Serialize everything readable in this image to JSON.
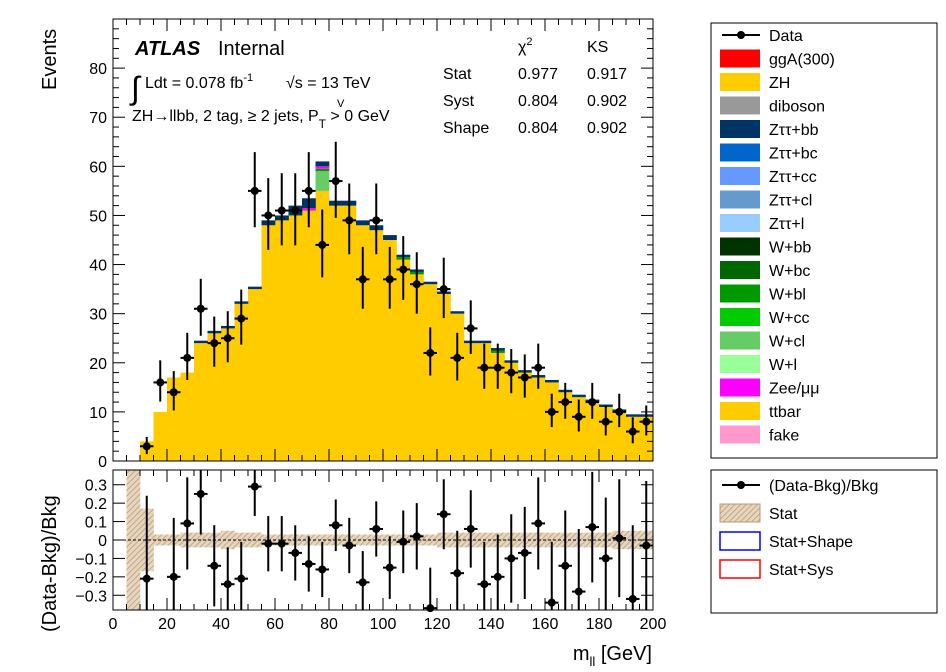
{
  "chart_data": [
    {
      "type": "bar",
      "stacked": true,
      "ylabel": "Events",
      "x_range": [
        0,
        200
      ],
      "ylim": [
        0,
        90
      ],
      "y_ticks": [
        0,
        10,
        20,
        30,
        40,
        50,
        60,
        70,
        80
      ],
      "atlas_label": "ATLAS",
      "atlas_status": "Internal",
      "lumi_text": "Ldt = 0.078 fb",
      "lumi_exp": "-1",
      "energy_text": "√s = 13 TeV",
      "region_text": "ZH→llbb, 2 tag, ≥ 2 jets,  P",
      "region_sup": "V",
      "region_sub": "T",
      "region_tail": " > 0 GeV",
      "stat_header": [
        "χ",
        "2",
        "KS"
      ],
      "stat_table": [
        {
          "name": "Stat",
          "chi2": "0.977",
          "ks": "0.917"
        },
        {
          "name": "Syst",
          "chi2": "0.804",
          "ks": "0.902"
        },
        {
          "name": "Shape",
          "chi2": "0.804",
          "ks": "0.902"
        }
      ],
      "bin_edges": [
        5,
        10,
        15,
        20,
        25,
        30,
        35,
        40,
        45,
        50,
        55,
        60,
        65,
        70,
        75,
        80,
        85,
        90,
        95,
        100,
        105,
        110,
        115,
        120,
        125,
        130,
        135,
        140,
        145,
        150,
        155,
        160,
        165,
        170,
        175,
        180,
        185,
        190,
        195,
        200
      ],
      "stack": [
        {
          "name": "ttbar",
          "color": "#ffcc00",
          "values": [
            0,
            4,
            10,
            17,
            18,
            24,
            26,
            27,
            32,
            35,
            48,
            49,
            50,
            51,
            55,
            52,
            52,
            48,
            47,
            45,
            41,
            38,
            36,
            34,
            30,
            24,
            24,
            22,
            20,
            18,
            17,
            16,
            14,
            13,
            12,
            11,
            10,
            9,
            9
          ]
        },
        {
          "name": "W+cl",
          "color": "#66cc66",
          "values": [
            0,
            0,
            0,
            0,
            0,
            0,
            0,
            0,
            0,
            0,
            0,
            0,
            0,
            0,
            4,
            0,
            0,
            0,
            0,
            0,
            0,
            0,
            0,
            0,
            0,
            0,
            0,
            0,
            0,
            0,
            0,
            0,
            0,
            0,
            0,
            0,
            0,
            0,
            0
          ]
        },
        {
          "name": "W+bl",
          "color": "#009900",
          "values": [
            0,
            0,
            0,
            0,
            0,
            0,
            0,
            0,
            0,
            0,
            0,
            0,
            0,
            0,
            0.5,
            0,
            0,
            0,
            0,
            0,
            0.5,
            0.5,
            0,
            0,
            0,
            0,
            0,
            0.5,
            0,
            0,
            0,
            0,
            0,
            0,
            0,
            0,
            0,
            0,
            0
          ]
        },
        {
          "name": "Zee/μμ",
          "color": "#ff00ff",
          "values": [
            0,
            0,
            0,
            0,
            0,
            0,
            0,
            0,
            0,
            0,
            0,
            0,
            0,
            0.5,
            0.5,
            0,
            0,
            0,
            0,
            0,
            0,
            0,
            0,
            0,
            0,
            0,
            0,
            0,
            0,
            0,
            0,
            0,
            0,
            0,
            0,
            0,
            0,
            0,
            0
          ]
        },
        {
          "name": "Zττ+bb",
          "color": "#003366",
          "values": [
            0,
            0,
            0,
            0,
            0,
            0.5,
            0.5,
            0.5,
            0.5,
            0.5,
            1,
            1,
            2,
            2,
            1,
            1,
            1,
            1,
            1,
            1,
            0.5,
            0.5,
            0.5,
            0.5,
            0.5,
            0.5,
            0.5,
            0.5,
            0.5,
            0.5,
            0.5,
            0.5,
            0.5,
            0.5,
            0.5,
            0.5,
            0.5,
            0.5,
            0.5
          ]
        }
      ],
      "data_points": {
        "x": [
          7.5,
          12.5,
          17.5,
          22.5,
          27.5,
          32.5,
          37.5,
          42.5,
          47.5,
          52.5,
          57.5,
          62.5,
          67.5,
          72.5,
          77.5,
          82.5,
          87.5,
          92.5,
          97.5,
          102.5,
          107.5,
          112.5,
          117.5,
          122.5,
          127.5,
          132.5,
          137.5,
          142.5,
          147.5,
          152.5,
          157.5,
          162.5,
          167.5,
          172.5,
          177.5,
          182.5,
          187.5,
          192.5,
          197.5
        ],
        "y": [
          0,
          3,
          16,
          14,
          21,
          31,
          24,
          25,
          29,
          55,
          50,
          51,
          51,
          55,
          44,
          57,
          49,
          37,
          49,
          37,
          39,
          36,
          22,
          35,
          21,
          27,
          19,
          19,
          18,
          17,
          19,
          10,
          12,
          9,
          12,
          8,
          10,
          6,
          8
        ],
        "err_hi": [
          0,
          1.9,
          4.5,
          4.3,
          5.1,
          6.1,
          5.4,
          5.5,
          5.9,
          7.9,
          7.6,
          7.6,
          7.6,
          7.9,
          7.2,
          8.0,
          7.5,
          6.6,
          7.5,
          6.6,
          6.8,
          6.5,
          5.2,
          6.4,
          5.1,
          5.7,
          4.9,
          4.9,
          4.8,
          4.7,
          4.9,
          3.7,
          3.9,
          3.5,
          3.9,
          3.3,
          3.7,
          2.9,
          3.3
        ],
        "err_lo": [
          0,
          1.6,
          3.9,
          3.7,
          4.5,
          5.5,
          4.8,
          4.9,
          5.3,
          7.4,
          7.0,
          7.1,
          7.1,
          7.4,
          6.6,
          7.5,
          6.9,
          6.0,
          6.9,
          6.0,
          6.2,
          6.0,
          4.6,
          5.9,
          4.6,
          5.2,
          4.3,
          4.3,
          4.2,
          4.1,
          4.3,
          3.1,
          3.4,
          3.0,
          3.4,
          2.8,
          3.1,
          2.4,
          2.8
        ]
      },
      "legend": [
        {
          "label": "Data",
          "kind": "marker",
          "color": "#000000"
        },
        {
          "label": "ggA(300)",
          "kind": "box",
          "color": "#ff0000"
        },
        {
          "label": "ZH",
          "kind": "box",
          "color": "#ffcc00"
        },
        {
          "label": "diboson",
          "kind": "box",
          "color": "#999999"
        },
        {
          "label": "Zττ+bb",
          "kind": "box",
          "color": "#003366"
        },
        {
          "label": "Zττ+bc",
          "kind": "box",
          "color": "#0066cc"
        },
        {
          "label": "Zττ+cc",
          "kind": "box",
          "color": "#6699ff"
        },
        {
          "label": "Zττ+cl",
          "kind": "box",
          "color": "#6699cc"
        },
        {
          "label": "Zττ+l",
          "kind": "box",
          "color": "#99ccff"
        },
        {
          "label": "W+bb",
          "kind": "box",
          "color": "#003300"
        },
        {
          "label": "W+bc",
          "kind": "box",
          "color": "#006600"
        },
        {
          "label": "W+bl",
          "kind": "box",
          "color": "#009900"
        },
        {
          "label": "W+cc",
          "kind": "box",
          "color": "#00cc00"
        },
        {
          "label": "W+cl",
          "kind": "box",
          "color": "#66cc66"
        },
        {
          "label": "W+l",
          "kind": "box",
          "color": "#99ff99"
        },
        {
          "label": "Zee/μμ",
          "kind": "box",
          "color": "#ff00ff"
        },
        {
          "label": "ttbar",
          "kind": "box",
          "color": "#ffcc00"
        },
        {
          "label": "fake",
          "kind": "box",
          "color": "#ff99cc"
        }
      ]
    },
    {
      "type": "scatter",
      "xlabel": "m",
      "xlabel_sub": "ll",
      "xlabel_unit": " [GeV]",
      "ylabel": "(Data-Bkg)/Bkg",
      "x_range": [
        0,
        200
      ],
      "ylim": [
        -0.38,
        0.38
      ],
      "x_ticks": [
        0,
        20,
        40,
        60,
        80,
        100,
        120,
        140,
        160,
        180,
        200
      ],
      "y_ticks": [
        -0.3,
        -0.2,
        -0.1,
        0,
        0.1,
        0.2,
        0.3
      ],
      "y_tick_labels": [
        "−0.3",
        "−0.2",
        "−0.1",
        "0",
        "0.1",
        "0.2",
        "0.3"
      ],
      "stat_band_halfwidth": [
        0.38,
        0.17,
        0.03,
        0.03,
        0.04,
        0.04,
        0.04,
        0.05,
        0.04,
        0.04,
        0.03,
        0.03,
        0.03,
        0.03,
        0.03,
        0.03,
        0.03,
        0.03,
        0.03,
        0.03,
        0.03,
        0.03,
        0.03,
        0.04,
        0.04,
        0.04,
        0.04,
        0.04,
        0.04,
        0.04,
        0.04,
        0.04,
        0.04,
        0.04,
        0.04,
        0.04,
        0.05,
        0.05,
        0.05
      ],
      "ratio_points": {
        "x": [
          12.5,
          22.5,
          27.5,
          32.5,
          37.5,
          42.5,
          47.5,
          52.5,
          57.5,
          62.5,
          67.5,
          72.5,
          77.5,
          82.5,
          87.5,
          92.5,
          97.5,
          102.5,
          107.5,
          112.5,
          117.5,
          122.5,
          127.5,
          132.5,
          137.5,
          142.5,
          147.5,
          152.5,
          157.5,
          162.5,
          167.5,
          172.5,
          177.5,
          182.5,
          187.5,
          192.5,
          197.5
        ],
        "y": [
          -0.21,
          -0.2,
          0.09,
          0.25,
          -0.14,
          -0.24,
          -0.21,
          0.29,
          -0.02,
          -0.02,
          -0.07,
          -0.13,
          -0.16,
          0.08,
          -0.03,
          -0.23,
          0.06,
          -0.15,
          -0.01,
          0.02,
          -0.37,
          0.14,
          -0.18,
          0.06,
          -0.24,
          -0.2,
          -0.1,
          -0.07,
          0.09,
          -0.34,
          -0.14,
          -0.28,
          0.07,
          -0.1,
          0.01,
          -0.32,
          -0.03
        ],
        "err": [
          0.45,
          0.32,
          0.25,
          0.22,
          0.22,
          0.2,
          0.2,
          0.16,
          0.15,
          0.15,
          0.15,
          0.15,
          0.15,
          0.14,
          0.15,
          0.17,
          0.15,
          0.17,
          0.17,
          0.18,
          0.22,
          0.19,
          0.23,
          0.21,
          0.23,
          0.23,
          0.24,
          0.25,
          0.25,
          0.33,
          0.3,
          0.34,
          0.3,
          0.33,
          0.32,
          0.4,
          0.35
        ]
      },
      "legend": [
        {
          "label": "(Data-Bkg)/Bkg",
          "kind": "marker",
          "color": "#000000"
        },
        {
          "label": "Stat",
          "kind": "hatch",
          "color": "#c8a882"
        },
        {
          "label": "Stat+Shape",
          "kind": "outline",
          "color": "#0000ff"
        },
        {
          "label": "Stat+Sys",
          "kind": "outline",
          "color": "#ff0000"
        }
      ]
    }
  ]
}
